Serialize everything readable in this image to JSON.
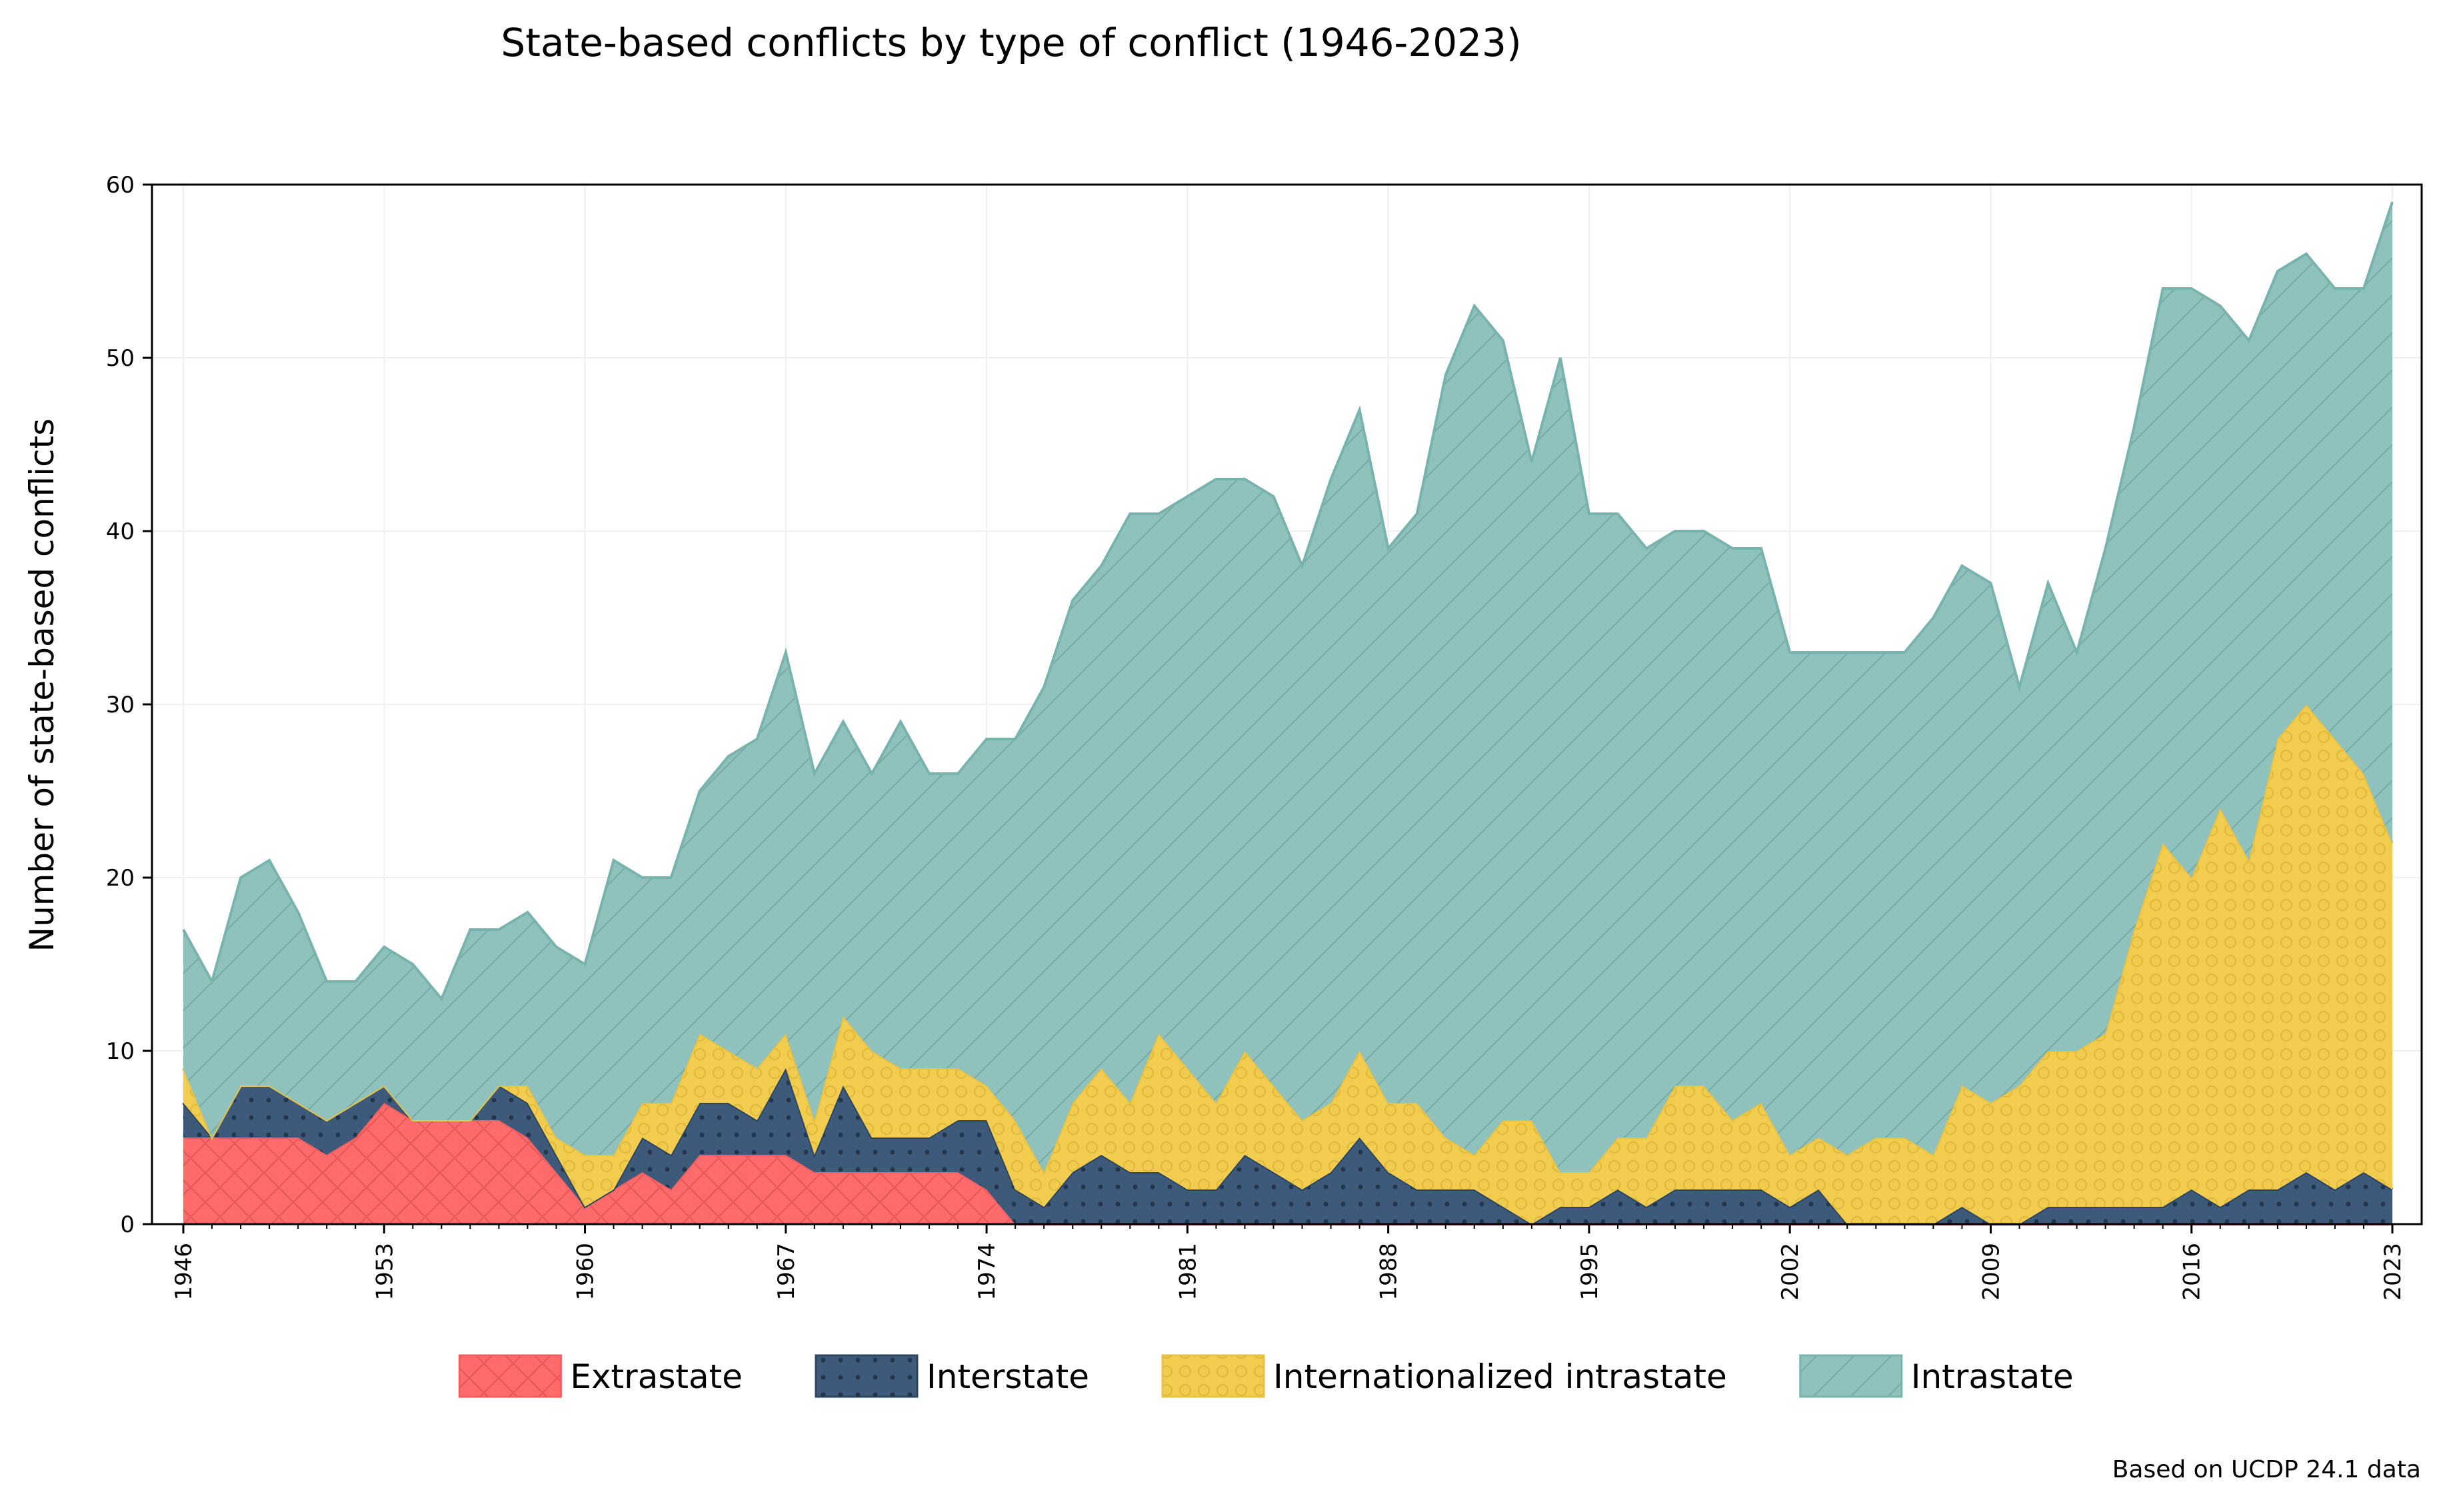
{
  "chart_data": {
    "type": "area",
    "stacked": true,
    "title": "State-based conflicts by type of conflict (1946-2023)",
    "xlabel": "",
    "ylabel": "Number of state-based conflicts",
    "ylim": [
      0,
      60
    ],
    "xlim": [
      1946,
      2023
    ],
    "grid": true,
    "legend_position": "bottom",
    "note": "Based on UCDP 24.1 data",
    "x_ticks": [
      1946,
      1953,
      1960,
      1967,
      1974,
      1981,
      1988,
      1995,
      2002,
      2009,
      2016,
      2023
    ],
    "y_ticks": [
      0,
      10,
      20,
      30,
      40,
      50,
      60
    ],
    "years": [
      1946,
      1947,
      1948,
      1949,
      1950,
      1951,
      1952,
      1953,
      1954,
      1955,
      1956,
      1957,
      1958,
      1959,
      1960,
      1961,
      1962,
      1963,
      1964,
      1965,
      1966,
      1967,
      1968,
      1969,
      1970,
      1971,
      1972,
      1973,
      1974,
      1975,
      1976,
      1977,
      1978,
      1979,
      1980,
      1981,
      1982,
      1983,
      1984,
      1985,
      1986,
      1987,
      1988,
      1989,
      1990,
      1991,
      1992,
      1993,
      1994,
      1995,
      1996,
      1997,
      1998,
      1999,
      2000,
      2001,
      2002,
      2003,
      2004,
      2005,
      2006,
      2007,
      2008,
      2009,
      2010,
      2011,
      2012,
      2013,
      2014,
      2015,
      2016,
      2017,
      2018,
      2019,
      2020,
      2021,
      2022,
      2023
    ],
    "series": [
      {
        "name": "Extrastate",
        "color": "#ff6b6b",
        "pattern": "crosshatch",
        "values": [
          5,
          5,
          5,
          5,
          5,
          4,
          5,
          7,
          6,
          6,
          6,
          6,
          5,
          3,
          1,
          2,
          3,
          2,
          4,
          4,
          4,
          4,
          3,
          3,
          3,
          3,
          3,
          3,
          2,
          0,
          0,
          0,
          0,
          0,
          0,
          0,
          0,
          0,
          0,
          0,
          0,
          0,
          0,
          0,
          0,
          0,
          0,
          0,
          0,
          0,
          0,
          0,
          0,
          0,
          0,
          0,
          0,
          0,
          0,
          0,
          0,
          0,
          0,
          0,
          0,
          0,
          0,
          0,
          0,
          0,
          0,
          0,
          0,
          0,
          0,
          0,
          0,
          0
        ]
      },
      {
        "name": "Interstate",
        "color": "#3d5a7a",
        "pattern": "dots",
        "values": [
          2,
          0,
          3,
          3,
          2,
          2,
          2,
          1,
          0,
          0,
          0,
          2,
          2,
          1,
          0,
          0,
          2,
          2,
          3,
          3,
          2,
          5,
          1,
          5,
          2,
          2,
          2,
          3,
          4,
          2,
          1,
          3,
          4,
          3,
          3,
          2,
          2,
          4,
          3,
          2,
          3,
          5,
          3,
          2,
          2,
          2,
          1,
          0,
          1,
          1,
          2,
          1,
          2,
          2,
          2,
          2,
          1,
          2,
          0,
          0,
          0,
          0,
          1,
          0,
          0,
          1,
          1,
          1,
          1,
          1,
          2,
          1,
          2,
          2,
          3,
          2,
          3,
          2
        ]
      },
      {
        "name": "Internationalized intrastate",
        "color": "#f1cc4f",
        "pattern": "circles",
        "values": [
          2,
          0,
          0,
          0,
          0,
          0,
          0,
          0,
          0,
          0,
          0,
          0,
          1,
          1,
          3,
          2,
          2,
          3,
          4,
          3,
          3,
          2,
          2,
          4,
          5,
          4,
          4,
          3,
          2,
          4,
          2,
          4,
          5,
          4,
          8,
          7,
          5,
          6,
          5,
          4,
          4,
          5,
          4,
          5,
          3,
          2,
          5,
          6,
          2,
          2,
          3,
          4,
          6,
          6,
          4,
          5,
          3,
          3,
          4,
          5,
          5,
          4,
          7,
          7,
          8,
          9,
          9,
          10,
          16,
          21,
          18,
          23,
          19,
          26,
          27,
          26,
          23,
          20
        ]
      },
      {
        "name": "Intrastate",
        "color": "#8fc1bd",
        "pattern": "diagonal",
        "values": [
          8,
          9,
          12,
          13,
          11,
          8,
          7,
          8,
          9,
          7,
          11,
          9,
          10,
          11,
          11,
          17,
          13,
          13,
          14,
          17,
          19,
          22,
          20,
          17,
          16,
          20,
          17,
          17,
          20,
          22,
          28,
          29,
          29,
          34,
          30,
          33,
          36,
          33,
          34,
          32,
          36,
          37,
          32,
          34,
          44,
          49,
          45,
          38,
          47,
          38,
          36,
          34,
          32,
          32,
          33,
          32,
          29,
          28,
          29,
          28,
          28,
          31,
          30,
          30,
          23,
          27,
          23,
          28,
          29,
          32,
          34,
          29,
          30,
          27,
          26,
          26,
          28,
          37
        ]
      }
    ]
  }
}
